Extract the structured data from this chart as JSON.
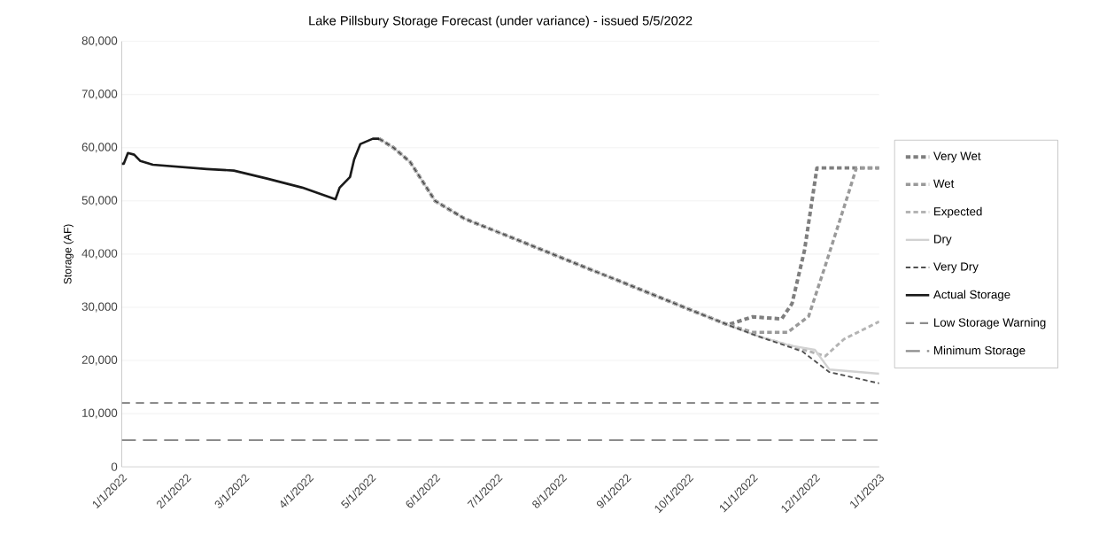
{
  "chart_data": {
    "type": "line",
    "title": "Lake Pillsbury Storage Forecast (under variance) - issued 5/5/2022",
    "ylabel": "Storage (AF)",
    "xlim": [
      "2022-01-01",
      "2023-01-01"
    ],
    "xticks": [
      {
        "value": "2022-01-01",
        "label": "1/1/2022"
      },
      {
        "value": "2022-02-01",
        "label": "2/1/2022"
      },
      {
        "value": "2022-03-01",
        "label": "3/1/2022"
      },
      {
        "value": "2022-04-01",
        "label": "4/1/2022"
      },
      {
        "value": "2022-05-01",
        "label": "5/1/2022"
      },
      {
        "value": "2022-06-01",
        "label": "6/1/2022"
      },
      {
        "value": "2022-07-01",
        "label": "7/1/2022"
      },
      {
        "value": "2022-08-01",
        "label": "8/1/2022"
      },
      {
        "value": "2022-09-01",
        "label": "9/1/2022"
      },
      {
        "value": "2022-10-01",
        "label": "10/1/2022"
      },
      {
        "value": "2022-11-01",
        "label": "11/1/2022"
      },
      {
        "value": "2022-12-01",
        "label": "12/1/2022"
      },
      {
        "value": "2023-01-01",
        "label": "1/1/2023"
      }
    ],
    "ylim": [
      0,
      80000
    ],
    "yticks": [
      0,
      {
        "value": 10000,
        "label": "10,000"
      },
      {
        "value": 20000,
        "label": "20,000"
      },
      {
        "value": 30000,
        "label": "30,000"
      },
      {
        "value": 40000,
        "label": "40,000"
      },
      {
        "value": 50000,
        "label": "50,000"
      },
      {
        "value": 60000,
        "label": "60,000"
      },
      {
        "value": 70000,
        "label": "70,000"
      },
      {
        "value": 80000,
        "label": "80,000"
      }
    ],
    "grid": "y",
    "legend": "right",
    "series": [
      {
        "name": "Very Wet",
        "color": "#7f7f7f",
        "line_style": "dashed",
        "x": [
          "2022-05-05",
          "2022-05-12",
          "2022-05-20",
          "2022-06-01",
          "2022-06-15",
          "2022-10-20",
          "2022-11-01",
          "2022-11-15",
          "2022-11-20",
          "2022-11-26",
          "2022-12-02",
          "2023-01-01"
        ],
        "values": [
          61700,
          60000,
          57300,
          50000,
          46700,
          26700,
          28200,
          27800,
          30700,
          40700,
          56200,
          56200
        ]
      },
      {
        "name": "Wet",
        "color": "#9a9a9a",
        "line_style": "dashed",
        "x": [
          "2022-05-05",
          "2022-05-12",
          "2022-05-20",
          "2022-06-01",
          "2022-06-15",
          "2022-10-20",
          "2022-11-01",
          "2022-11-18",
          "2022-11-28",
          "2022-12-06",
          "2022-12-17",
          "2022-12-21",
          "2023-01-01"
        ],
        "values": [
          61700,
          60000,
          57300,
          50000,
          46700,
          26700,
          25300,
          25300,
          28300,
          37800,
          51200,
          56200,
          56200
        ]
      },
      {
        "name": "Expected",
        "color": "#b4b4b4",
        "line_style": "dashed",
        "x": [
          "2022-05-05",
          "2022-05-12",
          "2022-05-20",
          "2022-06-01",
          "2022-06-15",
          "2022-10-20",
          "2022-11-04",
          "2022-11-19",
          "2022-12-06",
          "2022-12-15",
          "2023-01-01"
        ],
        "values": [
          61700,
          60000,
          57300,
          50000,
          46700,
          26700,
          24500,
          22800,
          20800,
          24000,
          27300
        ]
      },
      {
        "name": "Dry",
        "color": "#d2d2d2",
        "line_style": "solid",
        "x": [
          "2022-05-05",
          "2022-05-12",
          "2022-05-20",
          "2022-06-01",
          "2022-06-15",
          "2022-10-20",
          "2022-11-04",
          "2022-11-19",
          "2022-12-01",
          "2022-12-08",
          "2023-01-01"
        ],
        "values": [
          61700,
          60000,
          57300,
          50000,
          46700,
          26700,
          24500,
          22800,
          22000,
          18300,
          17500
        ]
      },
      {
        "name": "Very Dry",
        "color": "#505050",
        "line_style": "dashed",
        "x": [
          "2022-05-05",
          "2022-05-12",
          "2022-05-20",
          "2022-06-01",
          "2022-06-15",
          "2022-10-20",
          "2022-11-04",
          "2022-11-25",
          "2022-12-08",
          "2023-01-01"
        ],
        "values": [
          61700,
          60000,
          57300,
          50000,
          46700,
          26700,
          24500,
          21700,
          17800,
          15700
        ]
      },
      {
        "name": "Actual Storage",
        "color": "#1a1a1a",
        "line_style": "solid",
        "x": [
          "2022-01-01",
          "2022-01-02",
          "2022-01-04",
          "2022-01-07",
          "2022-01-10",
          "2022-01-16",
          "2022-02-11",
          "2022-02-24",
          "2022-03-12",
          "2022-03-29",
          "2022-04-14",
          "2022-04-16",
          "2022-04-21",
          "2022-04-23",
          "2022-04-26",
          "2022-05-02",
          "2022-05-05"
        ],
        "values": [
          57000,
          57000,
          59000,
          58700,
          57500,
          56800,
          56000,
          55700,
          54200,
          52500,
          50300,
          52500,
          54500,
          57800,
          60700,
          61700,
          61700
        ]
      }
    ],
    "ref_lines": [
      {
        "axis": "y",
        "value": 12000,
        "label": "Low Storage Warning",
        "color": "#8c8c8c",
        "line_style": "dashed"
      },
      {
        "axis": "y",
        "value": 5000,
        "label": "Minimum Storage",
        "color": "#8c8c8c",
        "line_style": "dashed"
      }
    ]
  }
}
